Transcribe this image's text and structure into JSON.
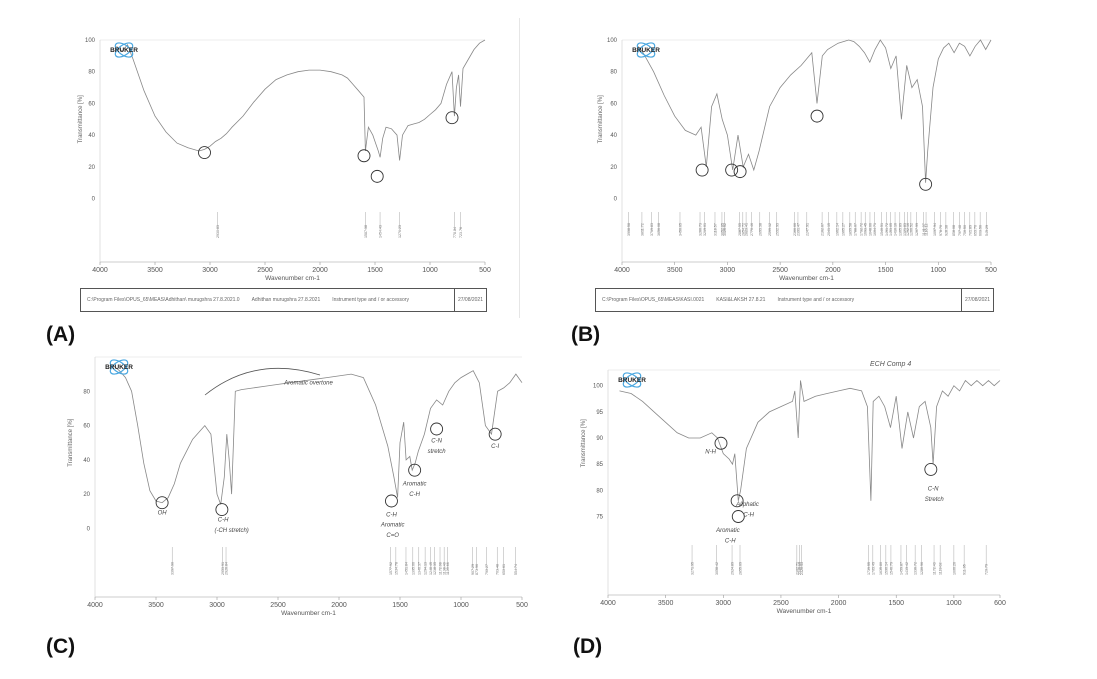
{
  "chart_data": [
    {
      "id": "A",
      "type": "line",
      "panel_label": "(A)",
      "logo": "BRUKER",
      "xlabel": "Wavenumber cm-1",
      "ylabel": "Transmittance [%]",
      "xlim": [
        4000,
        500
      ],
      "ylim": [
        -40,
        100
      ],
      "x_ticks": [
        4000,
        3500,
        3000,
        2500,
        2000,
        1500,
        1000,
        500
      ],
      "y_ticks": [
        0,
        20,
        40,
        60,
        80,
        100
      ],
      "x": [
        3850,
        3800,
        3750,
        3700,
        3600,
        3500,
        3400,
        3300,
        3200,
        3100,
        3050,
        3000,
        2950,
        2900,
        2850,
        2800,
        2700,
        2600,
        2500,
        2400,
        2300,
        2200,
        2100,
        2000,
        1900,
        1800,
        1750,
        1700,
        1650,
        1600,
        1587,
        1560,
        1520,
        1500,
        1470,
        1454,
        1430,
        1400,
        1350,
        1300,
        1276,
        1250,
        1200,
        1150,
        1100,
        1050,
        1000,
        950,
        900,
        850,
        800,
        778,
        760,
        740,
        723,
        700,
        650,
        600,
        550,
        500
      ],
      "y": [
        96,
        93,
        97,
        88,
        68,
        52,
        42,
        35,
        32,
        30,
        31,
        33,
        36,
        38,
        41,
        45,
        52,
        61,
        69,
        75,
        78,
        80,
        81,
        81,
        80,
        78,
        76,
        72,
        68,
        64,
        30,
        45,
        40,
        36,
        30,
        26,
        38,
        45,
        44,
        40,
        24,
        40,
        46,
        47,
        48,
        50,
        53,
        56,
        60,
        72,
        80,
        52,
        70,
        78,
        58,
        82,
        88,
        94,
        98,
        100
      ],
      "peak_labels": [
        "2930.83",
        "1587.38",
        "1454.43",
        "1276.23",
        "778.84",
        "723.76"
      ],
      "peak_x": [
        2930,
        1587,
        1454,
        1276,
        778,
        723
      ],
      "circles_x": [
        3050,
        1600,
        1480,
        800
      ],
      "circles_y": [
        29,
        27,
        14,
        51
      ],
      "footer": [
        "C:\\Program Files\\OPUS_65\\MEAS\\Adhithan\\ murugshra 27.8.2021.0",
        "Adhithan murugshra 27.8.2021",
        "Instrument type and / or accessory",
        "27/08/2021"
      ]
    },
    {
      "id": "B",
      "type": "line",
      "panel_label": "(B)",
      "logo": "BRUKER",
      "xlabel": "Wavenumber cm-1",
      "ylabel": "Transmittance [%]",
      "xlim": [
        4000,
        500
      ],
      "ylim": [
        -40,
        100
      ],
      "x_ticks": [
        4000,
        3500,
        3000,
        2500,
        2000,
        1500,
        1000,
        500
      ],
      "y_ticks": [
        0,
        20,
        40,
        60,
        80,
        100
      ],
      "x": [
        3850,
        3800,
        3700,
        3600,
        3500,
        3400,
        3300,
        3250,
        3200,
        3150,
        3100,
        3050,
        3000,
        2950,
        2900,
        2850,
        2800,
        2750,
        2700,
        2600,
        2500,
        2400,
        2300,
        2200,
        2150,
        2100,
        2050,
        2000,
        1950,
        1900,
        1850,
        1800,
        1750,
        1700,
        1650,
        1600,
        1550,
        1500,
        1450,
        1400,
        1350,
        1300,
        1250,
        1200,
        1150,
        1120,
        1100,
        1050,
        1000,
        950,
        900,
        850,
        800,
        750,
        700,
        650,
        600,
        550,
        500
      ],
      "y": [
        96,
        92,
        80,
        65,
        52,
        43,
        40,
        45,
        20,
        58,
        66,
        50,
        40,
        18,
        40,
        20,
        28,
        18,
        30,
        58,
        70,
        78,
        84,
        92,
        60,
        90,
        94,
        96,
        98,
        99,
        100,
        99,
        96,
        92,
        86,
        94,
        100,
        95,
        82,
        90,
        50,
        84,
        70,
        75,
        58,
        10,
        30,
        70,
        88,
        95,
        98,
        92,
        98,
        96,
        90,
        96,
        100,
        94,
        100
      ],
      "peak_labels": [
        "3938.58",
        "3811.72",
        "3719.83",
        "3656.08",
        "3450.65",
        "3260.73",
        "3219.01",
        "3118.57",
        "3052.05",
        "3026.52",
        "2887.55",
        "2854.72",
        "2823.41",
        "2770.46",
        "2693.38",
        "2599.12",
        "2532.93",
        "2366.66",
        "2331.47",
        "2247.91",
        "2102.67",
        "2041.15",
        "1962.14",
        "1905.27",
        "1839.58",
        "1788.07",
        "1732.72",
        "1693.45",
        "1648.66",
        "1604.71",
        "1540.51",
        "1491.72",
        "1453.05",
        "1410.16",
        "1365.89",
        "1321.83",
        "1292.16",
        "1260.52",
        "1207.99",
        "1141.37",
        "1116.12",
        "1037.94",
        "978.70",
        "928.38",
        "858.08",
        "797.48",
        "750.50",
        "701.89",
        "653.70",
        "603.56",
        "545.29"
      ],
      "peak_x": [
        3938,
        3811,
        3719,
        3656,
        3450,
        3260,
        3219,
        3118,
        3052,
        3026,
        2887,
        2854,
        2823,
        2770,
        2693,
        2599,
        2532,
        2366,
        2331,
        2247,
        2102,
        2041,
        1962,
        1905,
        1839,
        1788,
        1732,
        1693,
        1648,
        1604,
        1540,
        1491,
        1453,
        1410,
        1365,
        1321,
        1292,
        1260,
        1207,
        1141,
        1116,
        1037,
        978,
        928,
        858,
        797,
        750,
        701,
        653,
        603,
        545
      ],
      "circles_x": [
        3240,
        2960,
        2880,
        2150,
        1120
      ],
      "circles_y": [
        18,
        18,
        17,
        52,
        9
      ],
      "footer": [
        "C:\\Program Files\\OPUS_65\\MEAS\\KASI.0021",
        "KASI&LAKSH 27.8.21",
        "Instrument type and / or accessory",
        "27/08/2021"
      ]
    },
    {
      "id": "C",
      "type": "line",
      "panel_label": "(C)",
      "logo": "BRUKER",
      "xlabel": "Wavenumber cm-1",
      "ylabel": "Transmittance [%]",
      "xlim": [
        4000,
        500
      ],
      "ylim": [
        -40,
        100
      ],
      "x_ticks": [
        4000,
        3500,
        3000,
        2500,
        2000,
        1500,
        1000,
        500
      ],
      "y_ticks": [
        0,
        20,
        40,
        60,
        80
      ],
      "x": [
        3850,
        3800,
        3750,
        3700,
        3650,
        3600,
        3550,
        3500,
        3450,
        3400,
        3350,
        3300,
        3200,
        3100,
        3050,
        3000,
        2970,
        2940,
        2920,
        2900,
        2880,
        2860,
        2850,
        2800,
        2700,
        2600,
        2500,
        2400,
        2300,
        2200,
        2100,
        2000,
        1900,
        1800,
        1750,
        1700,
        1650,
        1600,
        1550,
        1520,
        1500,
        1470,
        1450,
        1420,
        1400,
        1376,
        1350,
        1300,
        1250,
        1200,
        1150,
        1100,
        1050,
        1000,
        950,
        900,
        850,
        800,
        750,
        700,
        650,
        600,
        550,
        500
      ],
      "y": [
        95,
        92,
        88,
        80,
        60,
        38,
        22,
        16,
        15,
        18,
        26,
        38,
        52,
        60,
        55,
        20,
        14,
        30,
        55,
        40,
        20,
        60,
        80,
        81,
        82,
        83,
        84,
        85,
        86,
        87,
        88,
        89,
        90,
        88,
        80,
        72,
        60,
        48,
        30,
        18,
        50,
        62,
        40,
        42,
        34,
        38,
        45,
        55,
        70,
        75,
        72,
        80,
        85,
        88,
        90,
        92,
        85,
        60,
        55,
        80,
        82,
        85,
        90,
        85
      ],
      "peak_labels": [
        "3367.90",
        "2953.91",
        "2926.84",
        "1577.92",
        "1534.78",
        "1451.84",
        "1395.06",
        "1346.37",
        "1294.13",
        "1248.45",
        "1218.35",
        "1172.08",
        "1138.40",
        "1109.66",
        "907.29",
        "873.96",
        "790.27",
        "703.48",
        "650.61",
        "554.74"
      ],
      "peak_x": [
        3367,
        2953,
        2926,
        1577,
        1534,
        1451,
        1395,
        1346,
        1294,
        1248,
        1218,
        1172,
        1138,
        1109,
        907,
        873,
        790,
        703,
        650,
        554
      ],
      "circles_x": [
        3450,
        2960,
        1570,
        1380,
        1200,
        720
      ],
      "circles_y": [
        15,
        11,
        16,
        34,
        58,
        55
      ],
      "annotations": [
        {
          "text": "OH",
          "x": 3450,
          "y": 8
        },
        {
          "text": "C-H",
          "x": 2950,
          "y": 4
        },
        {
          "text": "(-CH stretch)",
          "x": 2880,
          "y": -2
        },
        {
          "text": "Aromatic overtone",
          "x": 2250,
          "y": 84
        },
        {
          "text": "C-H",
          "x": 1570,
          "y": 7
        },
        {
          "text": "Aromatic",
          "x": 1560,
          "y": 1
        },
        {
          "text": "C=O",
          "x": 1560,
          "y": -5
        },
        {
          "text": "Aromatic",
          "x": 1380,
          "y": 25
        },
        {
          "text": "C-H",
          "x": 1380,
          "y": 19
        },
        {
          "text": "C-N",
          "x": 1200,
          "y": 50
        },
        {
          "text": "stretch",
          "x": 1200,
          "y": 44
        },
        {
          "text": "C-I",
          "x": 720,
          "y": 47
        }
      ]
    },
    {
      "id": "D",
      "type": "line",
      "panel_label": "(D)",
      "logo": "BRUKER",
      "title": "ECH Comp 4",
      "xlabel": "Wavenumber cm-1",
      "ylabel": "Transmittance [%]",
      "xlim": [
        4000,
        600
      ],
      "ylim": [
        60,
        103
      ],
      "x_ticks": [
        4000,
        3500,
        3000,
        2500,
        2000,
        1500,
        1000,
        600
      ],
      "y_ticks": [
        75,
        80,
        85,
        90,
        95,
        100
      ],
      "x": [
        3900,
        3800,
        3700,
        3600,
        3500,
        3400,
        3300,
        3200,
        3100,
        3050,
        3000,
        2950,
        2920,
        2900,
        2870,
        2850,
        2800,
        2700,
        2600,
        2500,
        2400,
        2380,
        2350,
        2330,
        2300,
        2200,
        2100,
        2000,
        1900,
        1800,
        1750,
        1720,
        1700,
        1650,
        1600,
        1550,
        1500,
        1450,
        1400,
        1350,
        1300,
        1250,
        1200,
        1180,
        1150,
        1100,
        1050,
        1000,
        950,
        900,
        850,
        800,
        750,
        700,
        650,
        600
      ],
      "y": [
        99,
        98.5,
        97,
        95,
        93,
        91,
        90,
        90,
        91,
        90,
        87,
        86,
        85,
        87,
        78,
        80,
        88,
        93,
        95,
        96,
        97,
        99,
        90,
        101,
        97,
        98,
        98.5,
        99,
        99.5,
        99,
        96,
        78,
        97,
        98,
        96,
        92,
        98,
        88,
        95,
        90,
        96,
        97,
        92,
        85,
        96,
        99,
        98,
        100,
        99,
        101,
        100,
        101,
        100,
        101,
        100,
        101
      ],
      "peak_labels": [
        "3271.95",
        "3058.42",
        "2924.89",
        "2855.69",
        "2362.71",
        "2340.89",
        "2320.43",
        "1739.55",
        "1703.49",
        "1635.80",
        "1590.14",
        "1546.79",
        "1459.87",
        "1413.42",
        "1336.72",
        "1280.96",
        "1172.43",
        "1119.02",
        "1000.26",
        "911.95",
        "720.79"
      ],
      "peak_x": [
        3271,
        3058,
        2924,
        2855,
        2362,
        2340,
        2320,
        1739,
        1703,
        1635,
        1590,
        1546,
        1459,
        1413,
        1336,
        1280,
        1172,
        1119,
        1000,
        911,
        720
      ],
      "circles_x": [
        3020,
        2870,
        2880,
        1200
      ],
      "circles_y": [
        89,
        75,
        78,
        84
      ],
      "annotations": [
        {
          "text": "N-H",
          "x": 3110,
          "y": 87
        },
        {
          "text": "Aliphatic",
          "x": 2790,
          "y": 77
        },
        {
          "text": "C-H",
          "x": 2780,
          "y": 75
        },
        {
          "text": "Aromatic",
          "x": 2960,
          "y": 72
        },
        {
          "text": "C-H",
          "x": 2940,
          "y": 70
        },
        {
          "text": "C-N",
          "x": 1180,
          "y": 80
        },
        {
          "text": "Stretch",
          "x": 1170,
          "y": 78
        }
      ]
    }
  ]
}
